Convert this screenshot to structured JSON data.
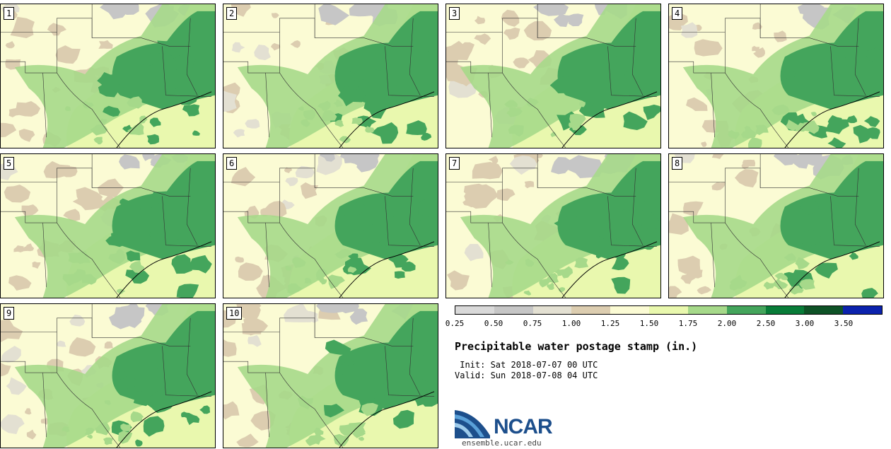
{
  "panels": [
    {
      "label": "1"
    },
    {
      "label": "2"
    },
    {
      "label": "3"
    },
    {
      "label": "4"
    },
    {
      "label": "5"
    },
    {
      "label": "6"
    },
    {
      "label": "7"
    },
    {
      "label": "8"
    },
    {
      "label": "9"
    },
    {
      "label": "10"
    }
  ],
  "colorbar": {
    "colors": [
      "#d9d9d9",
      "#c6c6c6",
      "#e3e0d2",
      "#dccdb0",
      "#fbfbd4",
      "#e9f8ae",
      "#a6d98a",
      "#44a55c",
      "#087c38",
      "#0e5226",
      "#0b22ad"
    ],
    "ticks": [
      "0.25",
      "0.50",
      "0.75",
      "1.00",
      "1.25",
      "1.50",
      "1.75",
      "2.00",
      "2.50",
      "3.00",
      "3.50"
    ]
  },
  "title": "Precipitable water postage stamp (in.)",
  "init_line": " Init: Sat 2018-07-07 00 UTC",
  "valid_line": "Valid: Sun 2018-07-08 04 UTC",
  "logo": {
    "text": "NCAR",
    "url": "ensemble.ucar.edu"
  }
}
